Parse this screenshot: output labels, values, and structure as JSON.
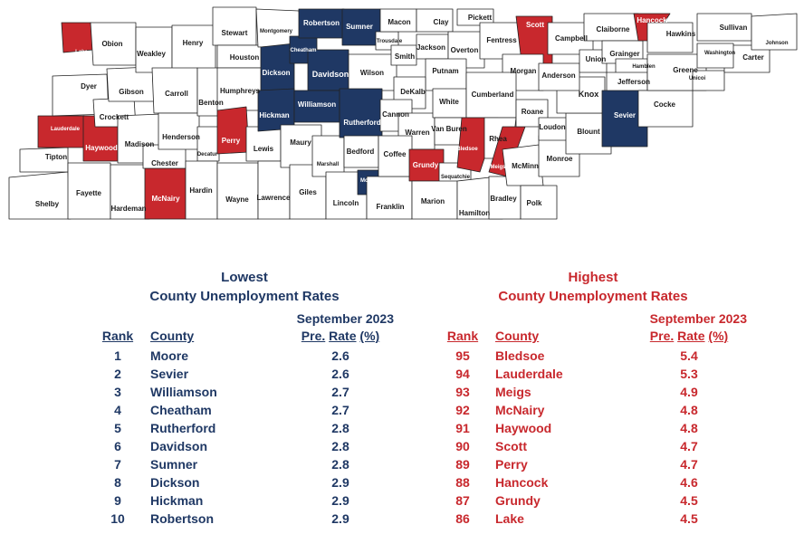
{
  "colors": {
    "navy": "#1f3864",
    "red": "#c8282d",
    "white": "#ffffff"
  },
  "counties": {
    "Shelby": "",
    "Tipton": "",
    "Lauderdale": "high",
    "Dyer": "",
    "Lake": "high",
    "Obion": "",
    "Fayette": "",
    "Haywood": "high",
    "Crockett": "",
    "Gibson": "",
    "Weakley": "",
    "Henry": "",
    "Carroll": "",
    "Madison": "",
    "Hardeman": "",
    "McNairy": "high",
    "Chester": "",
    "Henderson": "",
    "Benton": "",
    "Decatur": "",
    "Hardin": "",
    "Stewart": "",
    "Houston": "",
    "Humphreys": "",
    "Perry": "high",
    "Wayne": "",
    "Lewis": "",
    "Lawrence": "",
    "Montgomery": "",
    "Dickson": "low",
    "Hickman": "low",
    "Maury": "",
    "Giles": "",
    "Cheatham": "low",
    "Robertson": "low",
    "Davidson": "low",
    "Williamson": "low",
    "Marshall": "",
    "Lincoln": "",
    "Sumner": "low",
    "Wilson": "",
    "Rutherford": "low",
    "Bedford": "",
    "Moore": "low",
    "Franklin": "",
    "Trousdale": "",
    "Macon": "",
    "Smith": "",
    "Clay": "",
    "Jackson": "",
    "Pickett": "",
    "Overton": "",
    "Putnam": "",
    "DeKalb": "",
    "Cannon": "",
    "Warren": "",
    "Coffee": "",
    "White": "",
    "Van Buren": "",
    "Grundy": "high",
    "Sequatchie": "",
    "Marion": "",
    "Fentress": "",
    "Scott": "high",
    "Morgan": "",
    "Cumberland": "",
    "Bledsoe": "high",
    "Rhea": "",
    "Meigs": "high",
    "Hamilton": "",
    "Bradley": "",
    "McMinn": "",
    "Polk": "",
    "Monroe": "",
    "Roane": "",
    "Loudon": "",
    "Blount": "",
    "Knox": "",
    "Anderson": "",
    "Campbell": "",
    "Union": "",
    "Claiborne": "",
    "Grainger": "",
    "Hancock": "high",
    "Hawkins": "",
    "Hamblen": "",
    "Jefferson": "",
    "Sevier": "low",
    "Cocke": "",
    "Greene": "",
    "Unicoi": "",
    "Carter": "",
    "Washington": "",
    "Sullivan": "",
    "Johnson": ""
  },
  "lowest": {
    "title1": "Lowest",
    "title2": "County Unemployment Rates",
    "period": "September 2023",
    "col_rank": "Rank",
    "col_county": "County",
    "col_rate_pre": "Pre.",
    "col_rate_mid": "Rate",
    "col_rate_unit": "(%)",
    "rows": [
      {
        "rank": "1",
        "county": "Moore",
        "rate": "2.6"
      },
      {
        "rank": "2",
        "county": "Sevier",
        "rate": "2.6"
      },
      {
        "rank": "3",
        "county": "Williamson",
        "rate": "2.7"
      },
      {
        "rank": "4",
        "county": "Cheatham",
        "rate": "2.7"
      },
      {
        "rank": "5",
        "county": "Rutherford",
        "rate": "2.8"
      },
      {
        "rank": "6",
        "county": "Davidson",
        "rate": "2.8"
      },
      {
        "rank": "7",
        "county": "Sumner",
        "rate": "2.8"
      },
      {
        "rank": "8",
        "county": "Dickson",
        "rate": "2.9"
      },
      {
        "rank": "9",
        "county": "Hickman",
        "rate": "2.9"
      },
      {
        "rank": "10",
        "county": "Robertson",
        "rate": "2.9"
      }
    ]
  },
  "highest": {
    "title1": "Highest",
    "title2": "County Unemployment Rates",
    "period": "September 2023",
    "col_rank": "Rank",
    "col_county": "County",
    "col_rate_pre": "Pre.",
    "col_rate_mid": "Rate",
    "col_rate_unit": "(%)",
    "rows": [
      {
        "rank": "95",
        "county": "Bledsoe",
        "rate": "5.4"
      },
      {
        "rank": "94",
        "county": "Lauderdale",
        "rate": "5.3"
      },
      {
        "rank": "93",
        "county": "Meigs",
        "rate": "4.9"
      },
      {
        "rank": "92",
        "county": "McNairy",
        "rate": "4.8"
      },
      {
        "rank": "91",
        "county": "Haywood",
        "rate": "4.8"
      },
      {
        "rank": "90",
        "county": "Scott",
        "rate": "4.7"
      },
      {
        "rank": "89",
        "county": "Perry",
        "rate": "4.7"
      },
      {
        "rank": "88",
        "county": "Hancock",
        "rate": "4.6"
      },
      {
        "rank": "87",
        "county": "Grundy",
        "rate": "4.5"
      },
      {
        "rank": "86",
        "county": "Lake",
        "rate": "4.5"
      }
    ]
  }
}
